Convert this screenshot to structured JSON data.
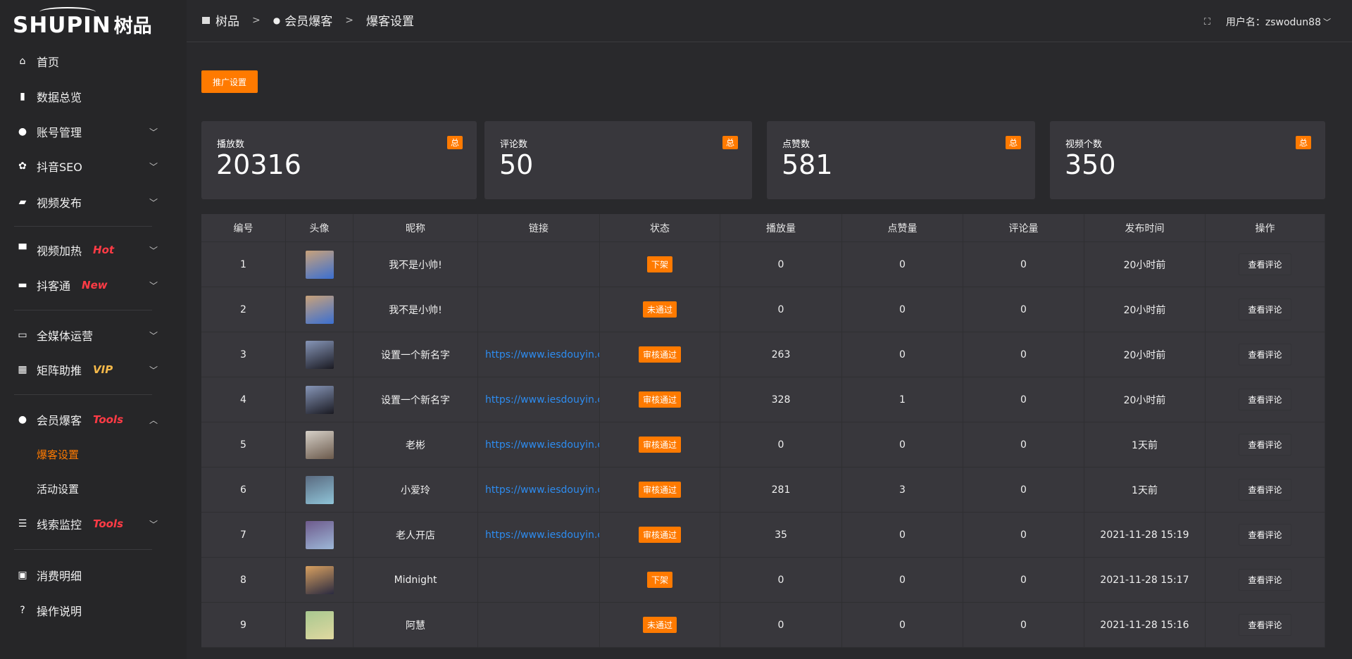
{
  "logo": {
    "en": "SHUPIN",
    "zh": "树品"
  },
  "sidebar": {
    "items": [
      {
        "label": "首页",
        "icon": "home-icon",
        "glyph": "⌂"
      },
      {
        "label": "数据总览",
        "icon": "bar-chart-icon",
        "glyph": "▮"
      },
      {
        "label": "账号管理",
        "icon": "user-icon",
        "glyph": "●",
        "chevron": "down"
      },
      {
        "label": "抖音SEO",
        "icon": "gear-icon",
        "glyph": "✿",
        "chevron": "down"
      },
      {
        "label": "视频发布",
        "icon": "camera-icon",
        "glyph": "▰",
        "chevron": "down"
      },
      {
        "label": "视频加热",
        "icon": "billboard-icon",
        "glyph": "▀",
        "chevron": "down",
        "tag": "Hot",
        "tag_color": "#ff3b45"
      },
      {
        "label": "抖客通",
        "icon": "chat-icon",
        "glyph": "▬",
        "chevron": "down",
        "tag": "New",
        "tag_color": "#ff3b45"
      },
      {
        "label": "全媒体运营",
        "icon": "monitor-icon",
        "glyph": "▭",
        "chevron": "down"
      },
      {
        "label": "矩阵助推",
        "icon": "grid-icon",
        "glyph": "▦",
        "chevron": "down",
        "tag": "VIP",
        "tag_color": "#f5b94a"
      },
      {
        "label": "会员爆客",
        "icon": "user-icon",
        "glyph": "●",
        "chevron": "up",
        "tag": "Tools",
        "tag_color": "#ff3b45"
      },
      {
        "label": "爆客设置",
        "sub": true,
        "active": true
      },
      {
        "label": "活动设置",
        "sub": true
      },
      {
        "label": "线索监控",
        "icon": "sliders-icon",
        "glyph": "☰",
        "chevron": "down",
        "tag": "Tools",
        "tag_color": "#ff3b45"
      },
      {
        "label": "消费明细",
        "icon": "wallet-icon",
        "glyph": "▣"
      },
      {
        "label": "操作说明",
        "icon": "help-icon",
        "glyph": "?"
      }
    ]
  },
  "breadcrumb": {
    "home": "树品",
    "parent": "会员爆客",
    "current": "爆客设置",
    "sep": ">"
  },
  "user": {
    "label": "用户名：zswodun88"
  },
  "toolbar": {
    "promo_label": "推广设置"
  },
  "stats": [
    {
      "label": "播放数",
      "value": "20316",
      "badge": "总"
    },
    {
      "label": "评论数",
      "value": "50",
      "badge": "总"
    },
    {
      "label": "点赞数",
      "value": "581",
      "badge": "总"
    },
    {
      "label": "视频个数",
      "value": "350",
      "badge": "总"
    }
  ],
  "table": {
    "columns": [
      "编号",
      "头像",
      "昵称",
      "链接",
      "状态",
      "播放量",
      "点赞量",
      "评论量",
      "发布时间",
      "操作"
    ],
    "action_label": "查看评论",
    "rows": [
      {
        "id": "1",
        "avatar": [
          "#c9a27a",
          "#3b6fd1"
        ],
        "name": "我不是小帅!",
        "link": "",
        "status": "下架",
        "plays": "0",
        "likes": "0",
        "comments": "0",
        "time": "20小时前"
      },
      {
        "id": "2",
        "avatar": [
          "#c9a27a",
          "#3b6fd1"
        ],
        "name": "我不是小帅!",
        "link": "",
        "status": "未通过",
        "plays": "0",
        "likes": "0",
        "comments": "0",
        "time": "20小时前"
      },
      {
        "id": "3",
        "avatar": [
          "#8796b8",
          "#1a1a22"
        ],
        "name": "设置一个新名字",
        "link": "https://www.iesdouyin.c",
        "status": "审核通过",
        "plays": "263",
        "likes": "0",
        "comments": "0",
        "time": "20小时前"
      },
      {
        "id": "4",
        "avatar": [
          "#8796b8",
          "#1a1a22"
        ],
        "name": "设置一个新名字",
        "link": "https://www.iesdouyin.c",
        "status": "审核通过",
        "plays": "328",
        "likes": "1",
        "comments": "0",
        "time": "20小时前"
      },
      {
        "id": "5",
        "avatar": [
          "#d6d0c8",
          "#6b5a4c"
        ],
        "name": "老彬",
        "link": "https://www.iesdouyin.c",
        "status": "审核通过",
        "plays": "0",
        "likes": "0",
        "comments": "0",
        "time": "1天前"
      },
      {
        "id": "6",
        "avatar": [
          "#5a6a80",
          "#8fc4d8"
        ],
        "name": "小爱玲",
        "link": "https://www.iesdouyin.c",
        "status": "审核通过",
        "plays": "281",
        "likes": "3",
        "comments": "0",
        "time": "1天前"
      },
      {
        "id": "7",
        "avatar": [
          "#6e5a8c",
          "#9db8d8"
        ],
        "name": "老人开店",
        "link": "https://www.iesdouyin.c",
        "status": "审核通过",
        "plays": "35",
        "likes": "0",
        "comments": "0",
        "time": "2021-11-28 15:19"
      },
      {
        "id": "8",
        "avatar": [
          "#d8a060",
          "#2a2a40"
        ],
        "name": "Midnight",
        "link": "",
        "status": "下架",
        "plays": "0",
        "likes": "0",
        "comments": "0",
        "time": "2021-11-28 15:17"
      },
      {
        "id": "9",
        "avatar": [
          "#a8c890",
          "#e0d8a0"
        ],
        "name": "阿慧",
        "link": "",
        "status": "未通过",
        "plays": "0",
        "likes": "0",
        "comments": "0",
        "time": "2021-11-28 15:16"
      }
    ]
  },
  "colors": {
    "accent": "#ff7a00",
    "link": "#2d8cf0"
  }
}
